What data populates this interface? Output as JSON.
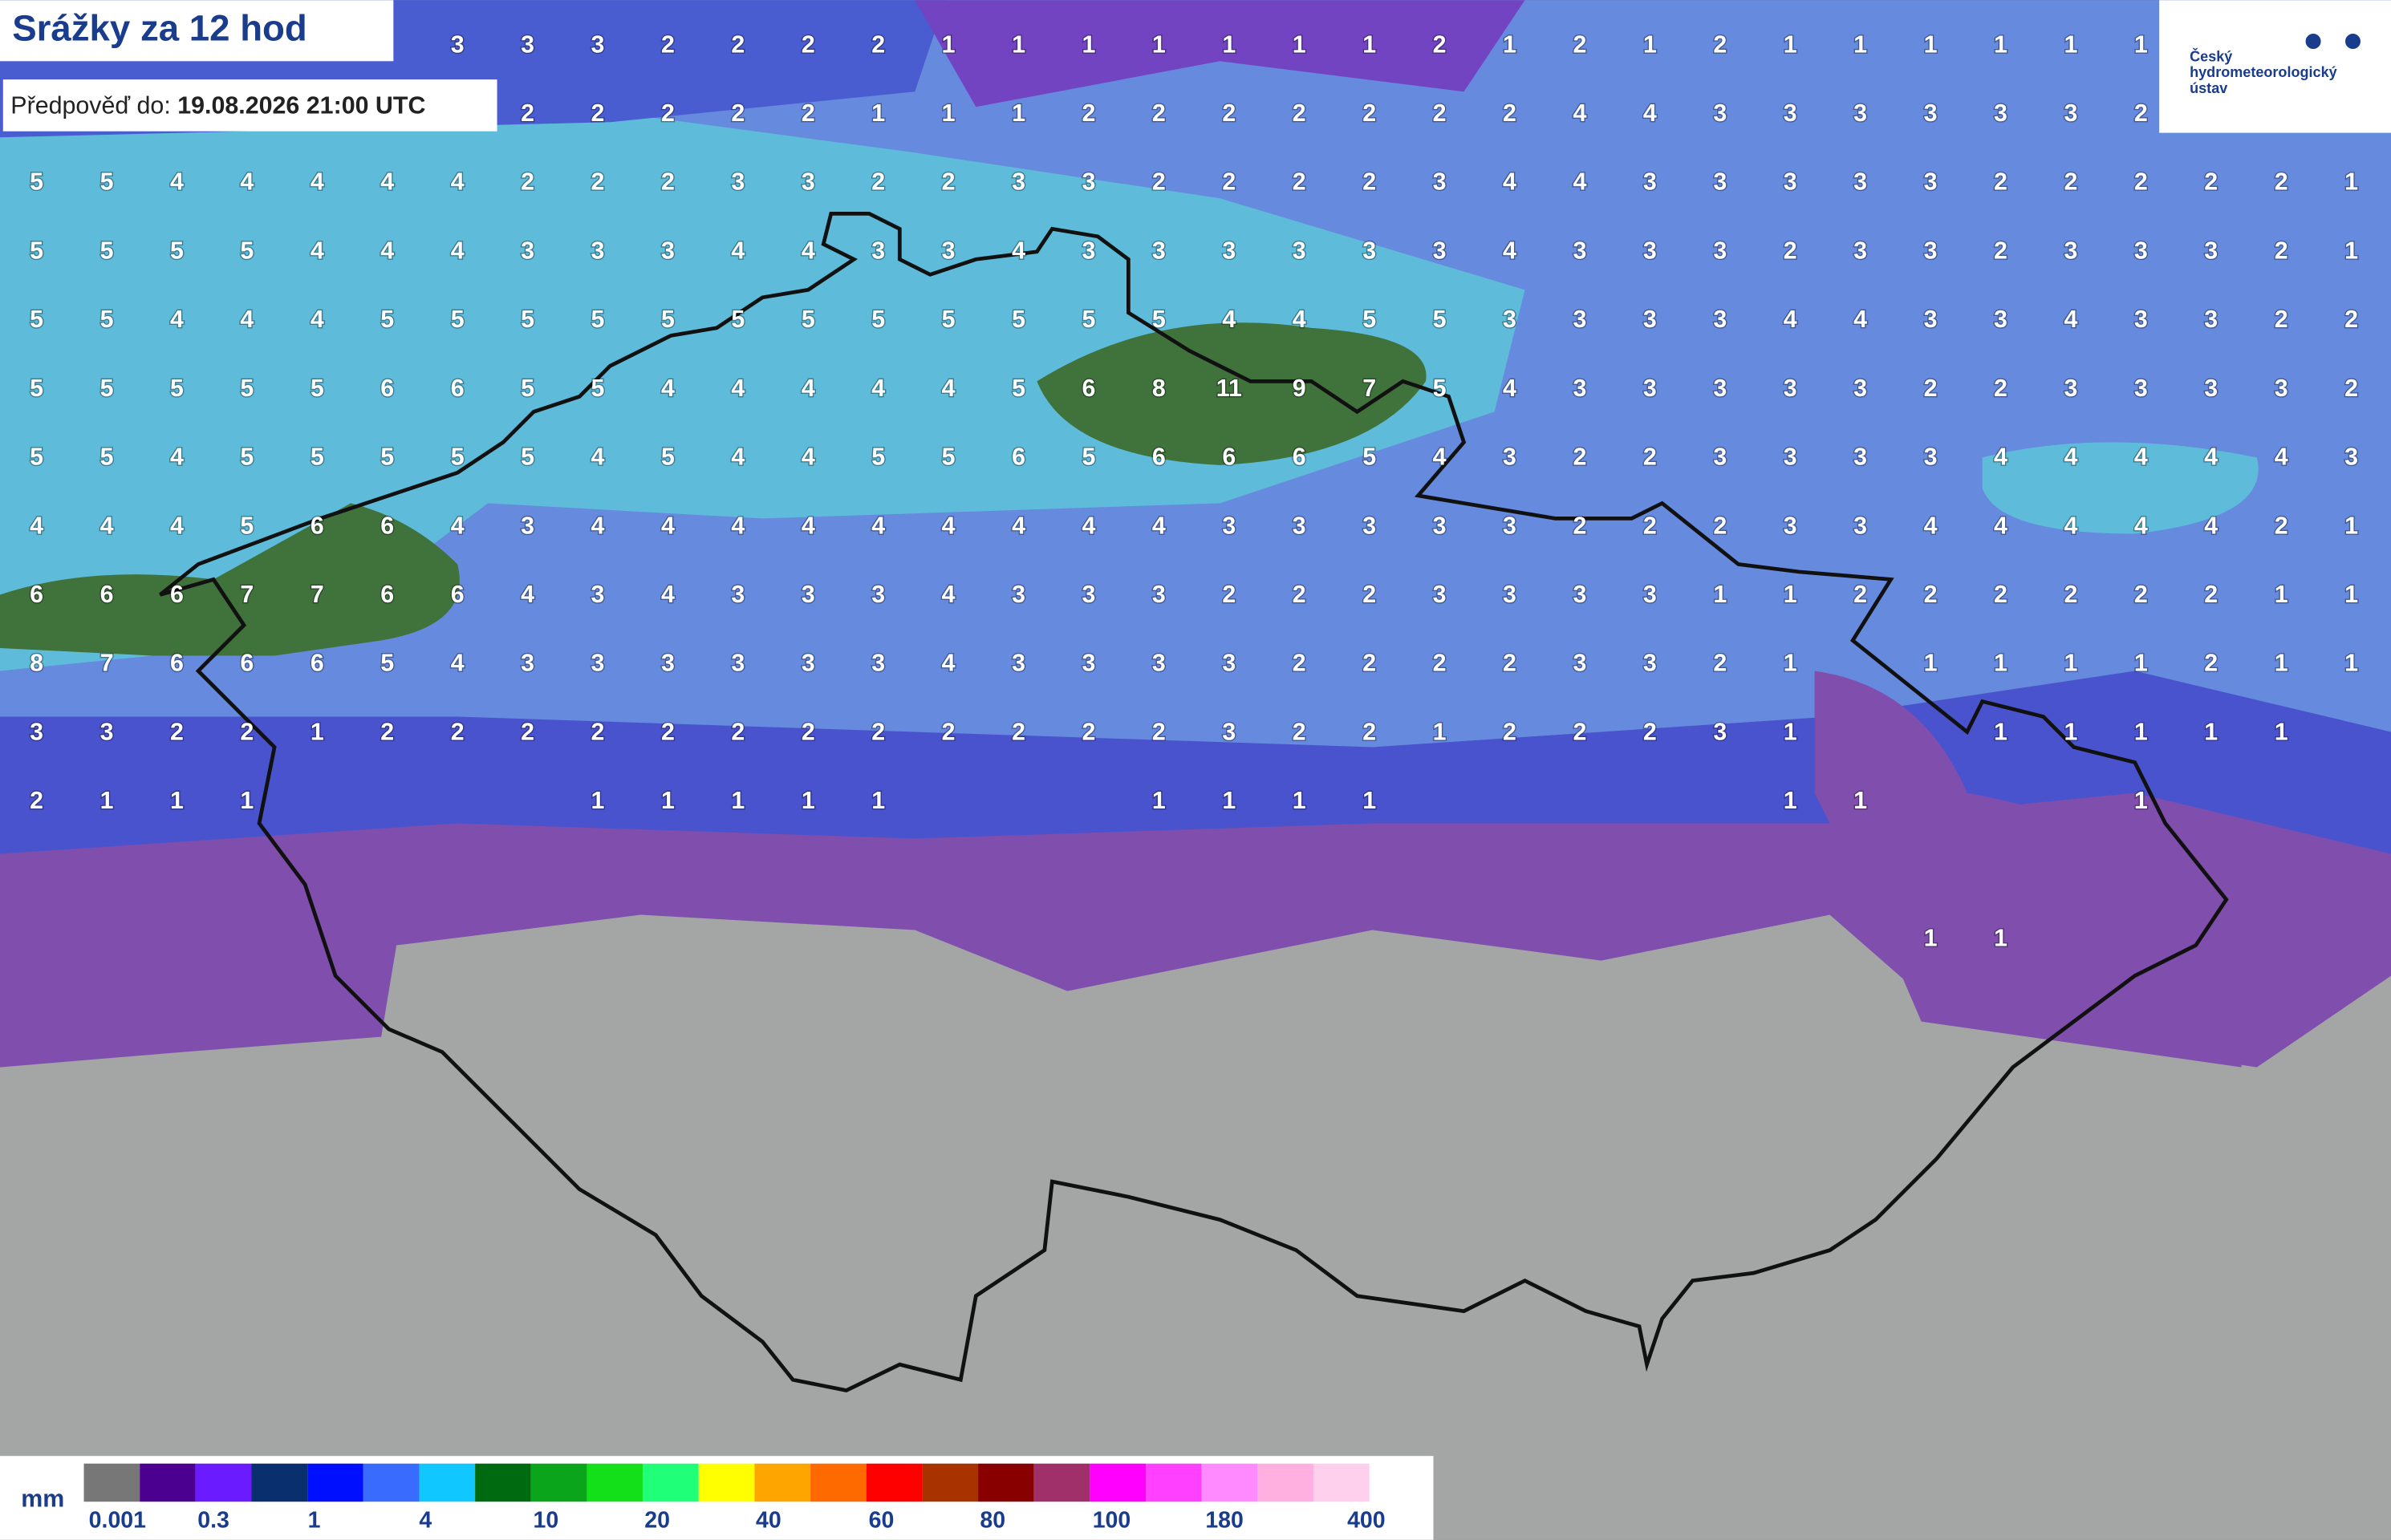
{
  "header": {
    "title": "Srážky za 12 hod",
    "forecast_label": "Předpověď do:",
    "forecast_time": "19.08.2026 21:00 UTC"
  },
  "logo": {
    "lines": [
      "Český",
      "hydrometeorologický",
      "ústav"
    ]
  },
  "grid": {
    "rows": [
      [
        null,
        null,
        null,
        null,
        null,
        null,
        3,
        3,
        3,
        2,
        2,
        2,
        2,
        1,
        1,
        1,
        1,
        1,
        1,
        1,
        2,
        1,
        2,
        1,
        2,
        1,
        1,
        1,
        1,
        1,
        1,
        null,
        null,
        null
      ],
      [
        null,
        null,
        null,
        null,
        null,
        null,
        null,
        2,
        2,
        2,
        2,
        2,
        1,
        1,
        1,
        2,
        2,
        2,
        2,
        2,
        2,
        2,
        4,
        4,
        3,
        3,
        3,
        3,
        3,
        3,
        2,
        null,
        null,
        null
      ],
      [
        5,
        5,
        4,
        4,
        4,
        4,
        4,
        2,
        2,
        2,
        3,
        3,
        2,
        2,
        3,
        3,
        2,
        2,
        2,
        2,
        3,
        4,
        4,
        3,
        3,
        3,
        3,
        3,
        2,
        2,
        2,
        2,
        2,
        1
      ],
      [
        5,
        5,
        5,
        5,
        4,
        4,
        4,
        3,
        3,
        3,
        4,
        4,
        3,
        3,
        4,
        3,
        3,
        3,
        3,
        3,
        3,
        4,
        3,
        3,
        3,
        2,
        3,
        3,
        2,
        3,
        3,
        3,
        2,
        1
      ],
      [
        5,
        5,
        4,
        4,
        4,
        5,
        5,
        5,
        5,
        5,
        5,
        5,
        5,
        5,
        5,
        5,
        5,
        4,
        4,
        5,
        5,
        3,
        3,
        3,
        3,
        4,
        4,
        3,
        3,
        4,
        3,
        3,
        2,
        2
      ],
      [
        5,
        5,
        5,
        5,
        5,
        6,
        6,
        5,
        5,
        4,
        4,
        4,
        4,
        4,
        5,
        6,
        8,
        11,
        9,
        7,
        5,
        4,
        3,
        3,
        3,
        3,
        3,
        2,
        2,
        3,
        3,
        3,
        3,
        2
      ],
      [
        5,
        5,
        4,
        5,
        5,
        5,
        5,
        5,
        4,
        5,
        4,
        4,
        5,
        5,
        6,
        5,
        6,
        6,
        6,
        5,
        4,
        3,
        2,
        2,
        3,
        3,
        3,
        3,
        4,
        4,
        4,
        4,
        4,
        3
      ],
      [
        4,
        4,
        4,
        5,
        6,
        6,
        4,
        3,
        4,
        4,
        4,
        4,
        4,
        4,
        4,
        4,
        4,
        3,
        3,
        3,
        3,
        3,
        2,
        2,
        2,
        3,
        3,
        4,
        4,
        4,
        4,
        4,
        2,
        1
      ],
      [
        6,
        6,
        6,
        7,
        7,
        6,
        6,
        4,
        3,
        4,
        3,
        3,
        3,
        4,
        3,
        3,
        3,
        2,
        2,
        2,
        3,
        3,
        3,
        3,
        1,
        1,
        2,
        2,
        2,
        2,
        2,
        2,
        1,
        1
      ],
      [
        8,
        7,
        6,
        6,
        6,
        5,
        4,
        3,
        3,
        3,
        3,
        3,
        3,
        4,
        3,
        3,
        3,
        3,
        2,
        2,
        2,
        2,
        3,
        3,
        2,
        1,
        null,
        1,
        1,
        1,
        1,
        2,
        1,
        1
      ],
      [
        3,
        3,
        2,
        2,
        1,
        2,
        2,
        2,
        2,
        2,
        2,
        2,
        2,
        2,
        2,
        2,
        2,
        3,
        2,
        2,
        1,
        2,
        2,
        2,
        3,
        1,
        null,
        null,
        1,
        1,
        1,
        1,
        1,
        null
      ],
      [
        2,
        1,
        1,
        1,
        null,
        null,
        null,
        null,
        1,
        1,
        1,
        1,
        1,
        null,
        null,
        null,
        1,
        1,
        1,
        1,
        null,
        null,
        null,
        null,
        null,
        1,
        1,
        null,
        null,
        null,
        1,
        null,
        null,
        null
      ],
      [
        null,
        null,
        null,
        null,
        null,
        null,
        null,
        null,
        null,
        null,
        null,
        null,
        null,
        null,
        null,
        null,
        null,
        null,
        null,
        null,
        null,
        null,
        null,
        null,
        null,
        null,
        null,
        null,
        null,
        null,
        null,
        null,
        null,
        null
      ],
      [
        null,
        null,
        null,
        null,
        null,
        null,
        null,
        null,
        null,
        null,
        null,
        null,
        null,
        null,
        null,
        null,
        null,
        null,
        null,
        null,
        null,
        null,
        null,
        null,
        null,
        null,
        null,
        1,
        1,
        null,
        null,
        null,
        null,
        null
      ]
    ]
  },
  "legend": {
    "unit": "mm",
    "colors": [
      "#777777",
      "#4c0090",
      "#6a1bff",
      "#0a2f6e",
      "#0010ff",
      "#3a6bff",
      "#10c8ff",
      "#006a10",
      "#0aa51a",
      "#14e01a",
      "#20ff78",
      "#ffff00",
      "#ffa500",
      "#ff6a00",
      "#ff0000",
      "#a83200",
      "#880000",
      "#a0306a",
      "#ff00ff",
      "#ff40ff",
      "#ff8aff",
      "#ffb0e0",
      "#ffd0ee"
    ],
    "labels": [
      "0.001",
      "0.3",
      "1",
      "4",
      "10",
      "20",
      "40",
      "60",
      "80",
      "100",
      "180",
      "400"
    ]
  }
}
